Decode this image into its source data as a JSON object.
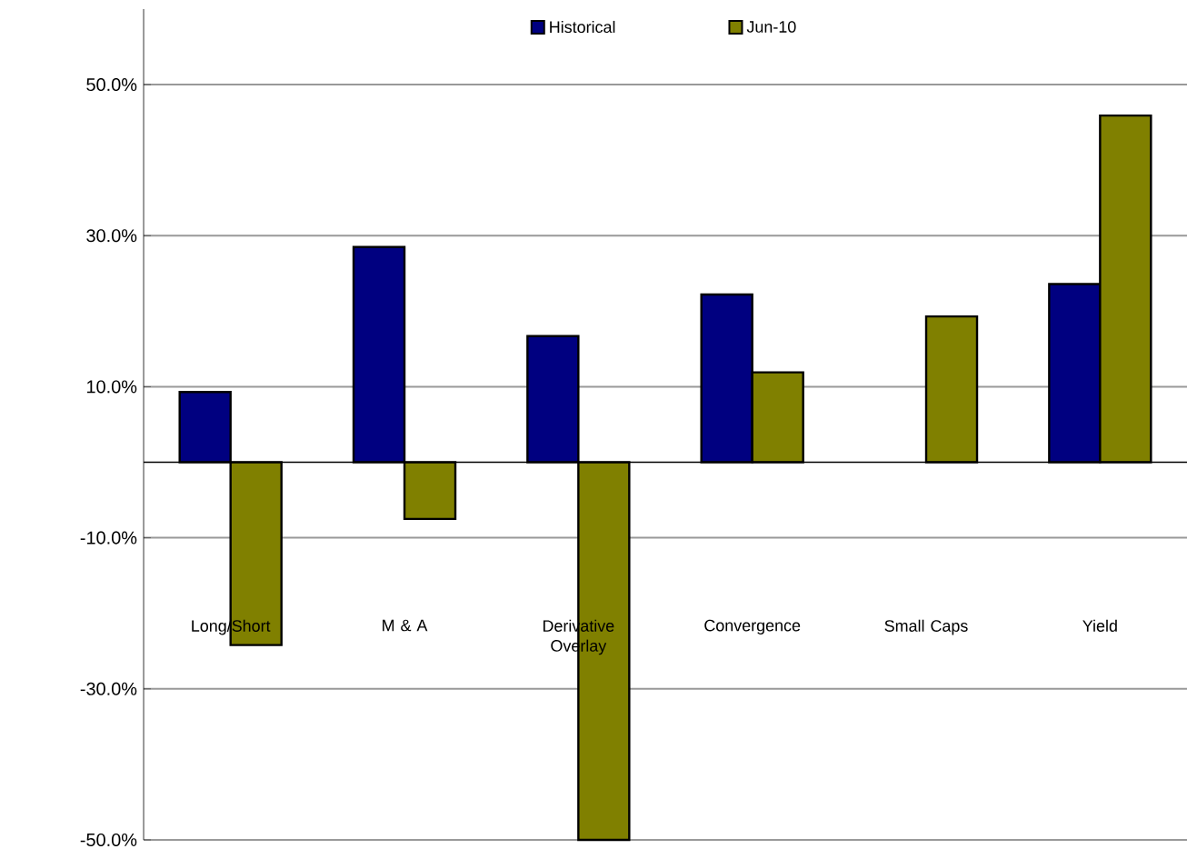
{
  "chart_data": {
    "type": "bar",
    "categories": [
      "Long/Short",
      "M & A",
      "Derivative Overlay",
      "Convergence",
      "Small Caps",
      "Yield"
    ],
    "series": [
      {
        "name": "Historical",
        "color": "#000080",
        "values": [
          9.3,
          28.5,
          16.7,
          22.2,
          0,
          23.6
        ]
      },
      {
        "name": "Jun-10",
        "color": "#808000",
        "values": [
          -24.2,
          -7.5,
          -50,
          11.9,
          19.3,
          45.9
        ]
      }
    ],
    "ylim": [
      -50,
      60
    ],
    "yticks": [
      {
        "value": 50,
        "label": "50.0%"
      },
      {
        "value": 30,
        "label": "30.0%"
      },
      {
        "value": 10,
        "label": "10.0%"
      },
      {
        "value": -10,
        "label": "-10.0%"
      },
      {
        "value": -30,
        "label": "-30.0%"
      },
      {
        "value": -50,
        "label": "-50.0%"
      }
    ],
    "grid": "y",
    "legend": "top"
  }
}
